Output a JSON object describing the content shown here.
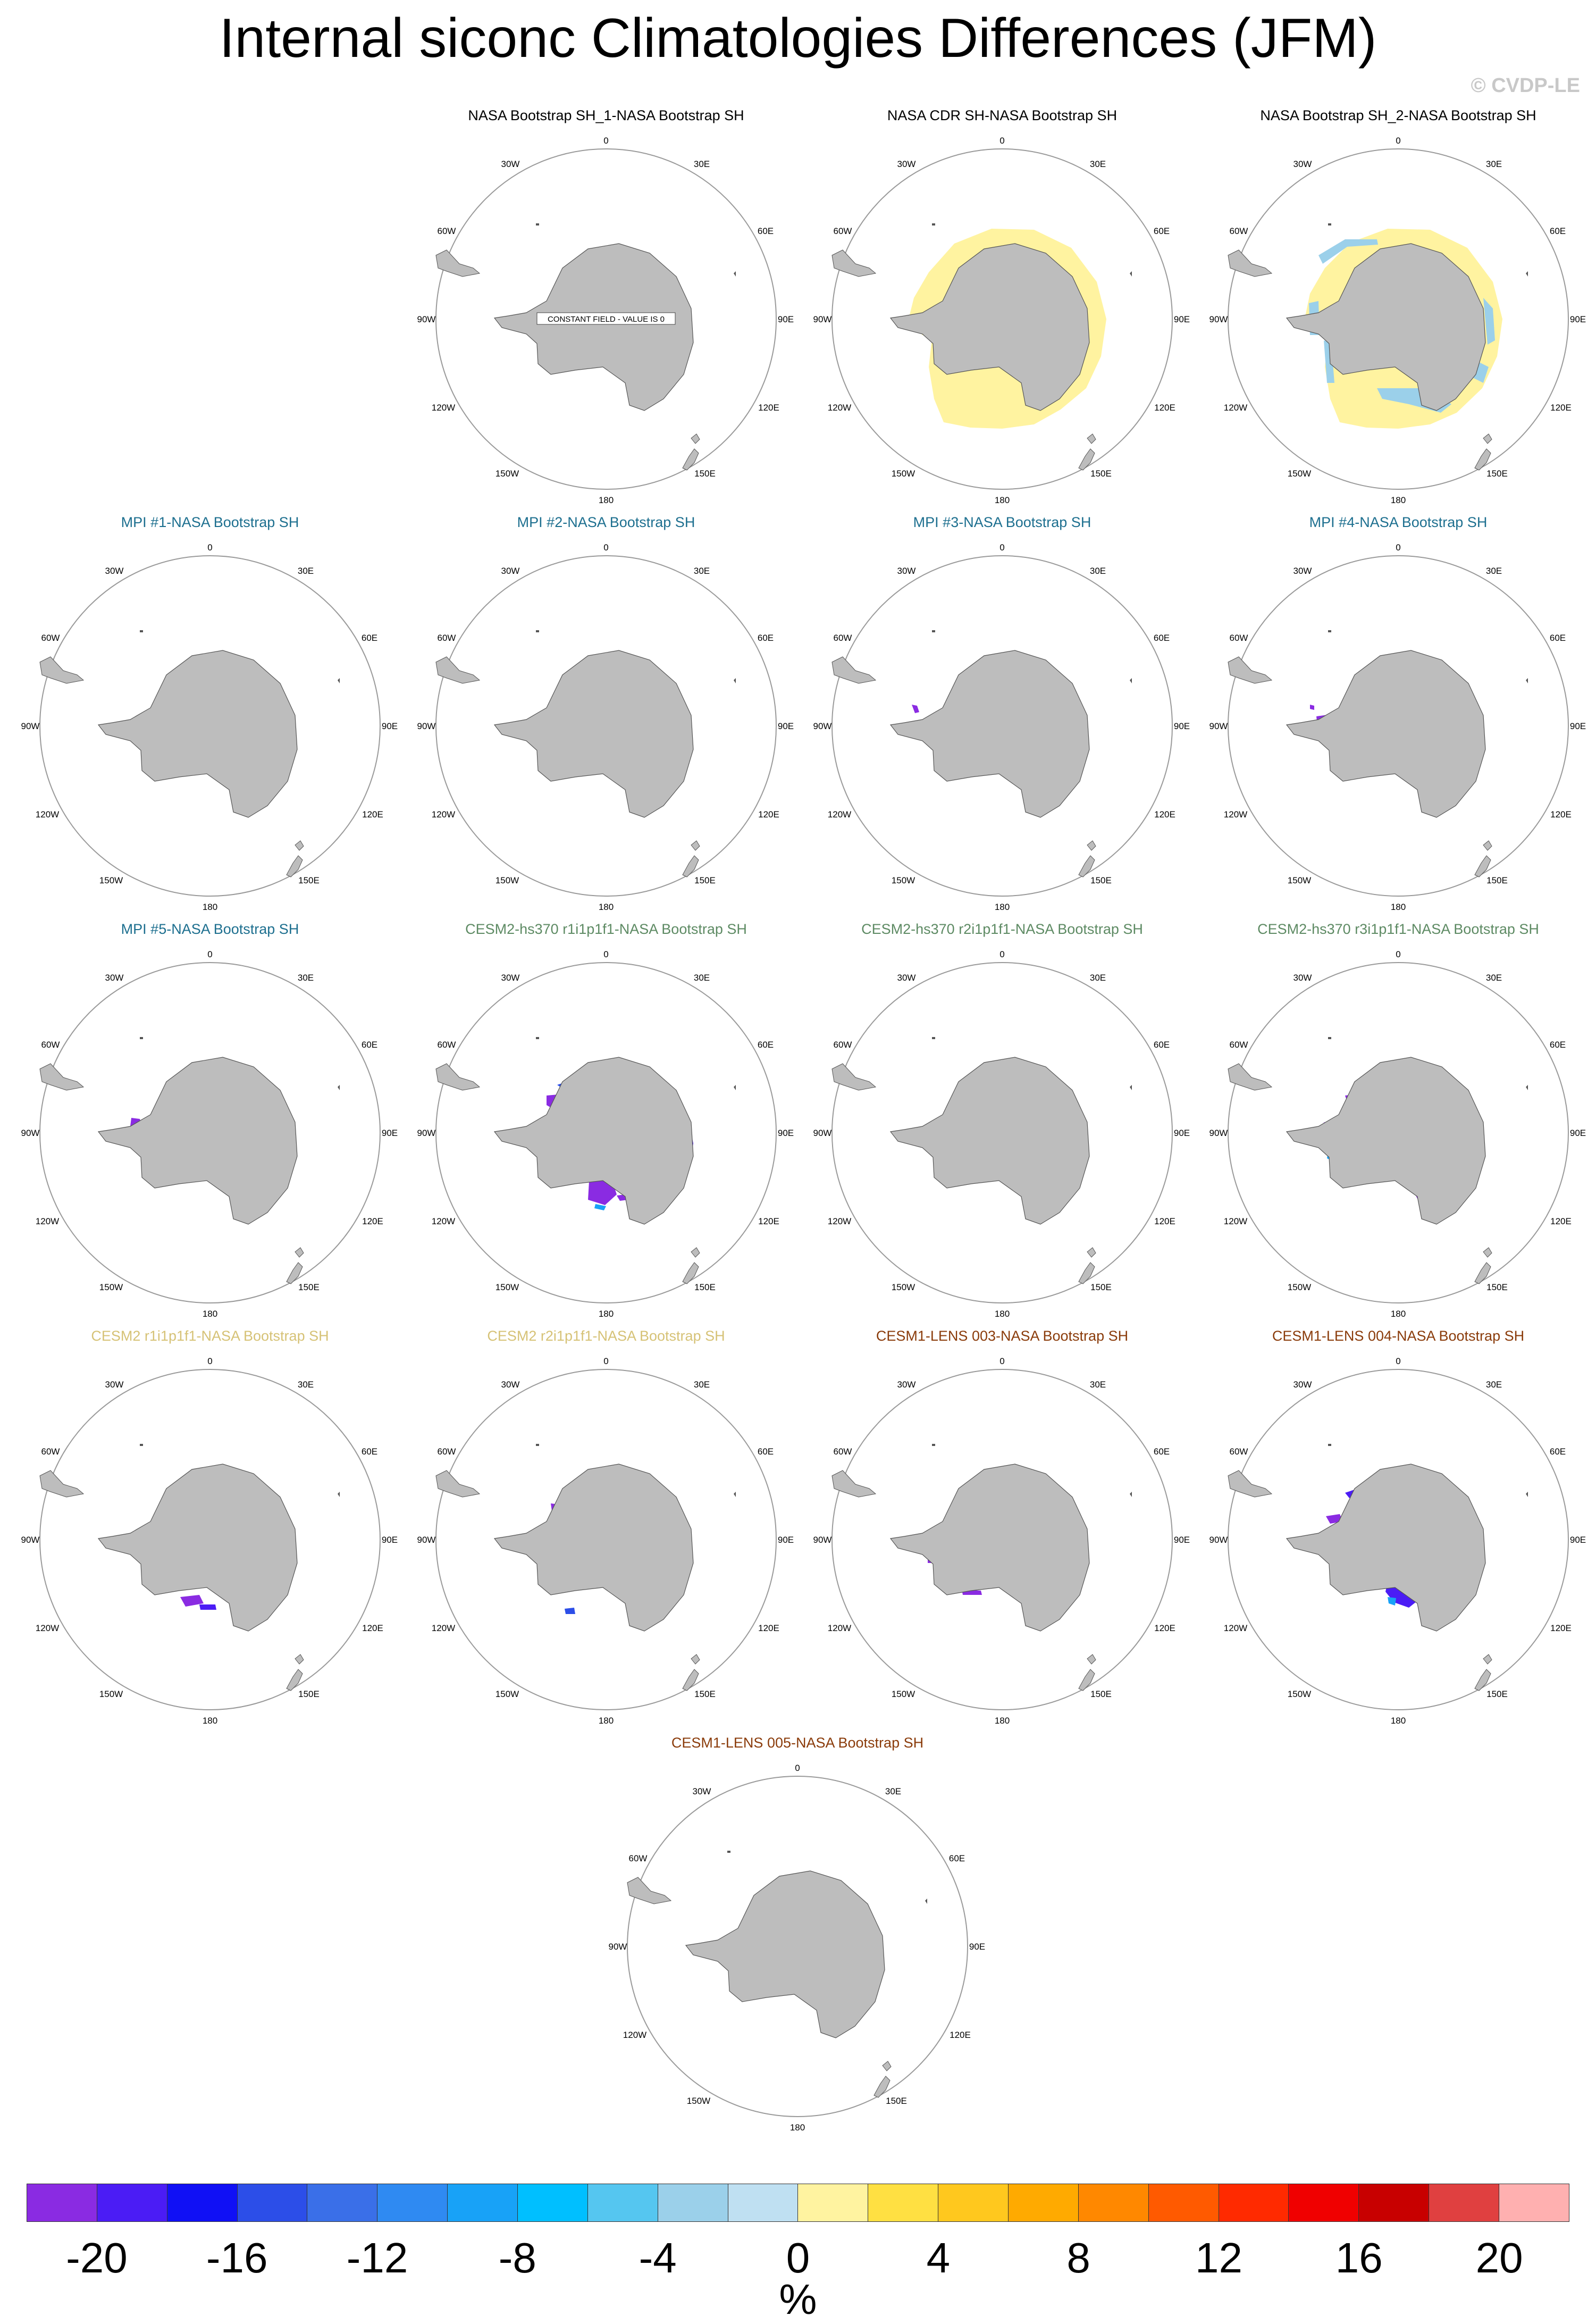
{
  "title": "Internal siconc Climatologies Differences (JFM)",
  "credit": "© CVDP-LE",
  "colors": {
    "land": "#bdbdbd",
    "circle": "#9a9a9a",
    "obs_title": "#000000",
    "mpi_title": "#1d6f8f",
    "cesm2_hs370_title": "#5d8a63",
    "cesm2_title": "#d6c276",
    "cesm1_title": "#8a3b0a"
  },
  "map_labels": {
    "top": "0",
    "bottom": "180",
    "left": "90W",
    "right": "90E",
    "upper_left_a": "30W",
    "upper_right_a": "30E",
    "upper_left_b": "60W",
    "upper_right_b": "60E",
    "lower_left_a": "120W",
    "lower_right_a": "120E",
    "lower_left_b": "150W",
    "lower_right_b": "150E"
  },
  "panels": [
    {
      "title": "NASA Bootstrap SH_1-NASA Bootstrap SH",
      "group": "obs",
      "pattern": "constant",
      "note": "CONSTANT FIELD - VALUE IS 0"
    },
    {
      "title": "NASA CDR SH-NASA Bootstrap SH",
      "group": "obs",
      "pattern": "ring-yellow"
    },
    {
      "title": "NASA Bootstrap SH_2-NASA Bootstrap SH",
      "group": "obs",
      "pattern": "ring-mixed"
    },
    {
      "title": "MPI #1-NASA Bootstrap SH",
      "group": "mpi",
      "pattern": "p1"
    },
    {
      "title": "MPI #2-NASA Bootstrap SH",
      "group": "mpi",
      "pattern": "p2"
    },
    {
      "title": "MPI #3-NASA Bootstrap SH",
      "group": "mpi",
      "pattern": "p3"
    },
    {
      "title": "MPI #4-NASA Bootstrap SH",
      "group": "mpi",
      "pattern": "p4"
    },
    {
      "title": "MPI #5-NASA Bootstrap SH",
      "group": "mpi",
      "pattern": "p5"
    },
    {
      "title": "CESM2-hs370 r1i1p1f1-NASA Bootstrap SH",
      "group": "cesm2_hs370",
      "pattern": "p6"
    },
    {
      "title": "CESM2-hs370 r2i1p1f1-NASA Bootstrap SH",
      "group": "cesm2_hs370",
      "pattern": "p7"
    },
    {
      "title": "CESM2-hs370 r3i1p1f1-NASA Bootstrap SH",
      "group": "cesm2_hs370",
      "pattern": "p8"
    },
    {
      "title": "CESM2 r1i1p1f1-NASA Bootstrap SH",
      "group": "cesm2",
      "pattern": "p9"
    },
    {
      "title": "CESM2 r2i1p1f1-NASA Bootstrap SH",
      "group": "cesm2",
      "pattern": "p10"
    },
    {
      "title": "CESM1-LENS 003-NASA Bootstrap SH",
      "group": "cesm1",
      "pattern": "p11"
    },
    {
      "title": "CESM1-LENS 004-NASA Bootstrap SH",
      "group": "cesm1",
      "pattern": "p12"
    },
    {
      "title": "CESM1-LENS 005-NASA Bootstrap SH",
      "group": "cesm1",
      "pattern": "p13"
    }
  ],
  "colorbar": {
    "colors": [
      "#8a2be2",
      "#4b1cf5",
      "#1010f5",
      "#2c4ee8",
      "#3a6fe8",
      "#2f8af2",
      "#18a2f7",
      "#00bfff",
      "#55c6f0",
      "#9bd0ea",
      "#bfe0f2",
      "#fff3a0",
      "#ffe042",
      "#ffc81e",
      "#ffaa00",
      "#ff8800",
      "#ff5a00",
      "#ff2a00",
      "#f00000",
      "#c80000",
      "#e04040",
      "#ffb0b0"
    ],
    "labels": [
      "-20",
      "-16",
      "-12",
      "-8",
      "-4",
      "0",
      "4",
      "8",
      "12",
      "16",
      "20"
    ],
    "unit": "%"
  }
}
